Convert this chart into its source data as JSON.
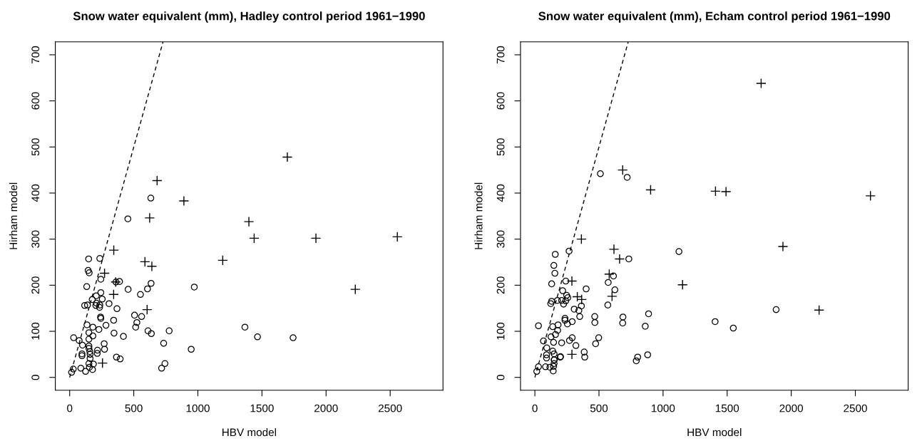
{
  "chart_data": [
    {
      "type": "scatter",
      "title": "Snow water equivalent (mm), Hadley control period 1961−1990",
      "xlabel": "HBV model",
      "ylabel": "Hirham model",
      "xlim": [
        -112,
        2912
      ],
      "ylim": [
        -28,
        728
      ],
      "xticks": [
        0,
        500,
        1000,
        1500,
        2000,
        2500
      ],
      "yticks": [
        0,
        100,
        200,
        300,
        400,
        500,
        600,
        700
      ],
      "grid": false,
      "series": [
        {
          "marker": "circle",
          "color": "#000000",
          "x": [
            454,
            148,
            235,
            144,
            152,
            243,
            133,
            361,
            389,
            456,
            635,
            607,
            552,
            972,
            176,
            207,
            254,
            243,
            117,
            139,
            209,
            235,
            233,
            204,
            307,
            369,
            241,
            243,
            343,
            283,
            135,
            181,
            506,
            561,
            524,
            515,
            611,
            637,
            776,
            346,
            419,
            228,
            31,
            100,
            181,
            269,
            217,
            215,
            733,
            948,
            150,
            157,
            365,
            394,
            743,
            717,
            185,
            178,
            124,
            15,
            633,
            1367,
            1465,
            1743,
            74,
            96,
            96,
            87,
            28,
            150,
            150,
            159,
            159,
            150,
            154,
            272,
            150
          ],
          "values": [
            344,
            257,
            258,
            232,
            227,
            213,
            197,
            207,
            208,
            191,
            204,
            192,
            180,
            196,
            169,
            177,
            170,
            184,
            156,
            157,
            161,
            157,
            152,
            156,
            160,
            149,
            131,
            128,
            124,
            113,
            114,
            109,
            135,
            132,
            119,
            109,
            101,
            95,
            101,
            96,
            89,
            104,
            86,
            70,
            90,
            73,
            59,
            52,
            74,
            61,
            68,
            56,
            44,
            40,
            30,
            20,
            29,
            17,
            13,
            11,
            389,
            109,
            88,
            86,
            80,
            51,
            47,
            20,
            18,
            97,
            83,
            50,
            41,
            30,
            22,
            61,
            63
          ]
        },
        {
          "marker": "cross",
          "color": "#000000",
          "x": [
            624,
            344,
            587,
            641,
            272,
            359,
            343,
            604,
            256,
            682,
            891,
            1698,
            1398,
            1439,
            1194,
            1921,
            2556,
            2228
          ],
          "values": [
            346,
            276,
            251,
            241,
            226,
            207,
            180,
            147,
            31,
            427,
            383,
            478,
            338,
            302,
            254,
            302,
            305,
            191
          ]
        },
        {
          "type": "line",
          "line_style": "dashed",
          "marker": "none",
          "color": "#000000",
          "x": [
            0,
            728
          ],
          "values": [
            0,
            728
          ]
        }
      ]
    },
    {
      "type": "scatter",
      "title": "Snow water equivalent (mm), Echam control period 1961−1990",
      "xlabel": "HBV model",
      "ylabel": "Hirham model",
      "xlim": [
        -112,
        2912
      ],
      "ylim": [
        -28,
        728
      ],
      "xticks": [
        0,
        500,
        1000,
        1500,
        2000,
        2500
      ],
      "yticks": [
        0,
        100,
        200,
        300,
        400,
        500,
        600,
        700
      ],
      "grid": false,
      "series": [
        {
          "marker": "circle",
          "color": "#000000",
          "x": [
            267,
            159,
            733,
            148,
            156,
            131,
            241,
            613,
            572,
            624,
            400,
            217,
            248,
            257,
            241,
            209,
            176,
            131,
            124,
            224,
            363,
            569,
            307,
            343,
            350,
            467,
            468,
            687,
            685,
            887,
            861,
            235,
            235,
            254,
            291,
            28,
            181,
            178,
            161,
            126,
            291,
            498,
            474,
            209,
            320,
            93,
            139,
            385,
            389,
            802,
            791,
            880,
            200,
            152,
            150,
            146,
            117,
            143,
            15,
            511,
            720,
            1124,
            1406,
            1548,
            1882,
            67,
            270,
            91,
            91,
            83,
            28,
            139,
            146,
            150,
            150,
            198
          ],
          "values": [
            274,
            267,
            257,
            243,
            226,
            203,
            209,
            220,
            206,
            190,
            192,
            188,
            178,
            173,
            166,
            167,
            167,
            165,
            160,
            159,
            155,
            157,
            148,
            145,
            132,
            132,
            119,
            131,
            118,
            138,
            111,
            128,
            124,
            116,
            121,
            112,
            114,
            102,
            93,
            88,
            86,
            86,
            73,
            75,
            69,
            64,
            57,
            55,
            44,
            44,
            36,
            49,
            45,
            38,
            30,
            24,
            22,
            14,
            13,
            442,
            434,
            273,
            121,
            107,
            147,
            79,
            80,
            49,
            42,
            23,
            23,
            110,
            76,
            51,
            38,
            44
          ]
        },
        {
          "marker": "cross",
          "color": "#000000",
          "x": [
            363,
            617,
            661,
            580,
            289,
            331,
            365,
            602,
            289,
            685,
            903,
            1765,
            1409,
            1491,
            2618,
            1935,
            1152,
            2217
          ],
          "values": [
            300,
            278,
            257,
            224,
            209,
            175,
            169,
            176,
            50,
            450,
            407,
            638,
            404,
            403,
            394,
            284,
            201,
            146
          ]
        },
        {
          "type": "line",
          "line_style": "dashed",
          "marker": "none",
          "color": "#000000",
          "x": [
            0,
            728
          ],
          "values": [
            0,
            728
          ]
        }
      ]
    }
  ]
}
